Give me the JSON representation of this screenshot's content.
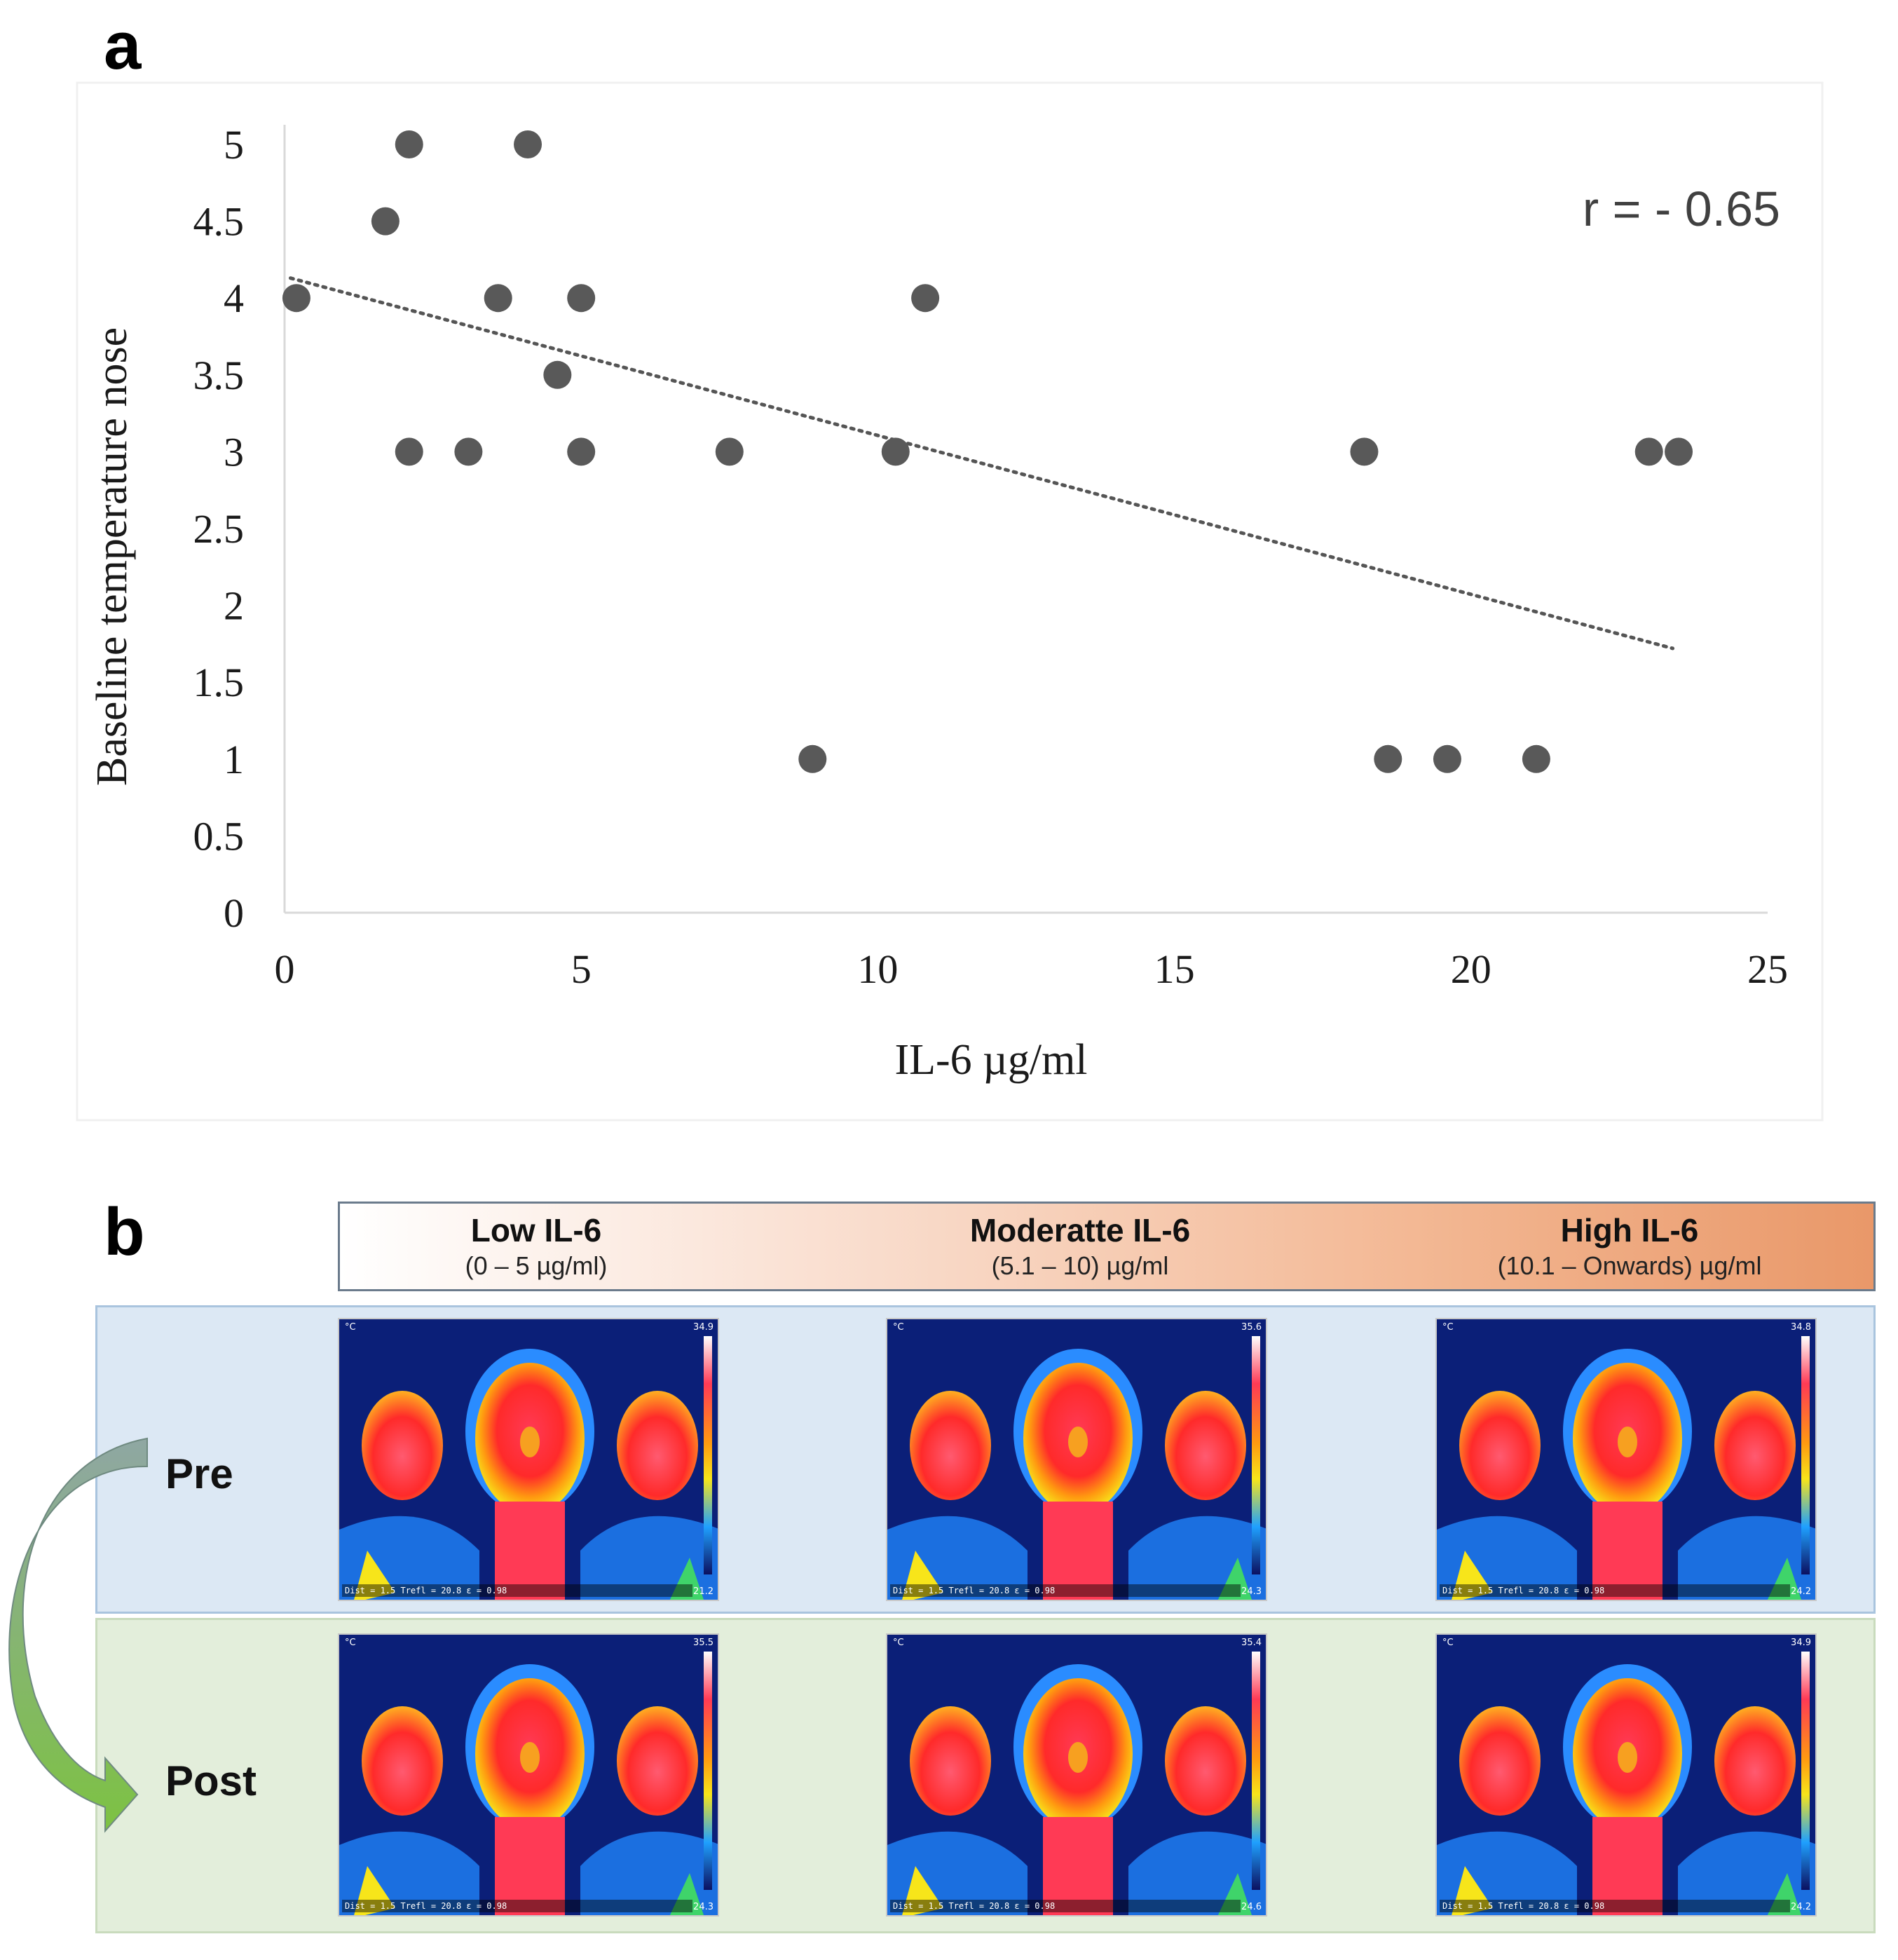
{
  "panel_a": {
    "letter": "a"
  },
  "panel_b": {
    "letter": "b",
    "groups": [
      {
        "label": "Low IL-6",
        "range": "(0 – 5 µg/ml)"
      },
      {
        "label": "Moderatte IL-6",
        "range": "(5.1 – 10) µg/ml"
      },
      {
        "label": "High IL-6",
        "range": "(10.1 – Onwards) µg/ml"
      }
    ],
    "rows": [
      {
        "label": "Pre"
      },
      {
        "label": "Post"
      }
    ],
    "images": [
      {
        "row": "pre",
        "group": "low",
        "scale_max": "34.9",
        "scale_min": "21.2",
        "status": "Dist = 1.5  Trefl = 20.8  ε = 0.98"
      },
      {
        "row": "pre",
        "group": "moderate",
        "scale_max": "35.6",
        "scale_min": "24.3",
        "status": "Dist = 1.5  Trefl = 20.8  ε = 0.98"
      },
      {
        "row": "pre",
        "group": "high",
        "scale_max": "34.8",
        "scale_min": "24.2",
        "status": "Dist = 1.5  Trefl = 20.8  ε = 0.98"
      },
      {
        "row": "post",
        "group": "low",
        "scale_max": "35.5",
        "scale_min": "24.3",
        "status": "Dist = 1.5  Trefl = 20.8  ε = 0.98"
      },
      {
        "row": "post",
        "group": "moderate",
        "scale_max": "35.4",
        "scale_min": "24.6",
        "status": "Dist = 1.5  Trefl = 20.8  ε = 0.98"
      },
      {
        "row": "post",
        "group": "high",
        "scale_max": "34.9",
        "scale_min": "24.2",
        "status": "Dist = 1.5  Trefl = 20.8  ε = 0.98"
      }
    ],
    "colors": {
      "pre_row": "#dce8f4",
      "post_row": "#e3eedb",
      "arrow_top": "#8fa7a3",
      "arrow_bottom": "#7dc242"
    }
  },
  "chart_data": {
    "type": "scatter",
    "xlabel": "IL-6  µg/ml",
    "ylabel": "Baseline temperature nose",
    "xlim": [
      0,
      25
    ],
    "ylim": [
      0,
      5
    ],
    "xticks": [
      "0",
      "5",
      "10",
      "15",
      "20",
      "25"
    ],
    "yticks": [
      "0",
      "0.5",
      "1",
      "1.5",
      "2",
      "2.5",
      "3",
      "3.5",
      "4",
      "4.5",
      "5"
    ],
    "annotation": "r = - 0.65",
    "grid": false,
    "marker_color": "#595959",
    "trendline": {
      "style": "dotted",
      "x": [
        0.1,
        23.4
      ],
      "y": [
        4.13,
        1.72
      ]
    },
    "points": [
      {
        "x": 0.2,
        "y": 4
      },
      {
        "x": 1.7,
        "y": 4.5
      },
      {
        "x": 2.1,
        "y": 5
      },
      {
        "x": 4.1,
        "y": 5
      },
      {
        "x": 3.6,
        "y": 4
      },
      {
        "x": 5.0,
        "y": 4
      },
      {
        "x": 10.8,
        "y": 4
      },
      {
        "x": 4.6,
        "y": 3.5
      },
      {
        "x": 2.1,
        "y": 3
      },
      {
        "x": 3.1,
        "y": 3
      },
      {
        "x": 5.0,
        "y": 3
      },
      {
        "x": 7.5,
        "y": 3
      },
      {
        "x": 10.3,
        "y": 3
      },
      {
        "x": 18.2,
        "y": 3
      },
      {
        "x": 23.0,
        "y": 3
      },
      {
        "x": 23.5,
        "y": 3
      },
      {
        "x": 8.9,
        "y": 1
      },
      {
        "x": 18.6,
        "y": 1
      },
      {
        "x": 19.6,
        "y": 1
      },
      {
        "x": 21.1,
        "y": 1
      }
    ]
  }
}
